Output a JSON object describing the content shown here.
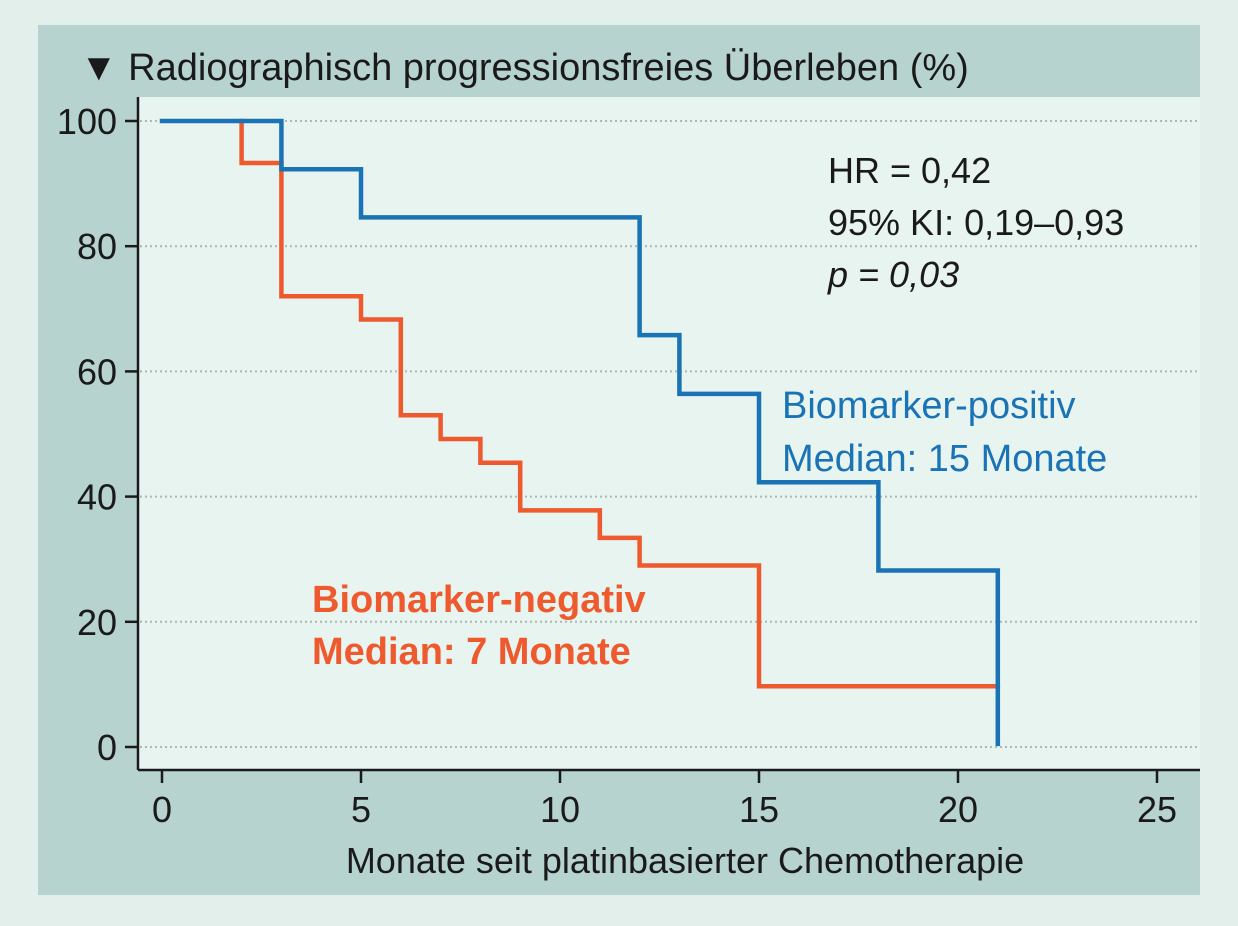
{
  "chart_data": {
    "type": "line",
    "step": true,
    "title": "▼ Radiographisch progressionsfreies Überleben (%)",
    "xlabel": "Monate seit platinbasierter Chemotherapie",
    "ylabel": "",
    "xlim": [
      0,
      26
    ],
    "ylim": [
      0,
      100
    ],
    "x_ticks": [
      0,
      5,
      10,
      15,
      20,
      25
    ],
    "y_ticks": [
      0,
      20,
      40,
      60,
      80,
      100
    ],
    "grid": "horizontal-dotted",
    "series": [
      {
        "name": "Biomarker-positiv",
        "color": "#1a73b5",
        "x": [
          0,
          3,
          5,
          12,
          13,
          15,
          18,
          21,
          21
        ],
        "y": [
          100,
          92.3,
          84.6,
          65.8,
          56.4,
          42.3,
          28.2,
          28.2,
          0.5
        ]
      },
      {
        "name": "Biomarker-negativ",
        "color": "#ee5a2e",
        "x": [
          2,
          2,
          3,
          5,
          6,
          7,
          8,
          9,
          11,
          12,
          15,
          21
        ],
        "y": [
          100,
          93.3,
          72,
          68.3,
          53,
          49.2,
          45.4,
          37.8,
          33.4,
          29,
          9.7,
          9.7
        ]
      }
    ],
    "annotations": [
      {
        "key": "hr",
        "lines": [
          "HR = 0,42",
          "95% KI: 0,19–0,93",
          "p = 0,03"
        ],
        "color": "#1a1a1a",
        "italic_lines": [
          2
        ]
      },
      {
        "key": "pos",
        "lines": [
          "Biomarker-positiv",
          "Median: 15 Monate"
        ],
        "color": "#1a73b5"
      },
      {
        "key": "neg",
        "lines": [
          "Biomarker-negativ",
          "Median: 7 Monate"
        ],
        "color": "#ee5a2e"
      }
    ]
  },
  "colors": {
    "page_background": "#e3efea",
    "panel_background": "#b7d3cf",
    "plot_background": "#e8f4ef",
    "grid": "#a8bab6",
    "axis": "#1a1a1a"
  }
}
